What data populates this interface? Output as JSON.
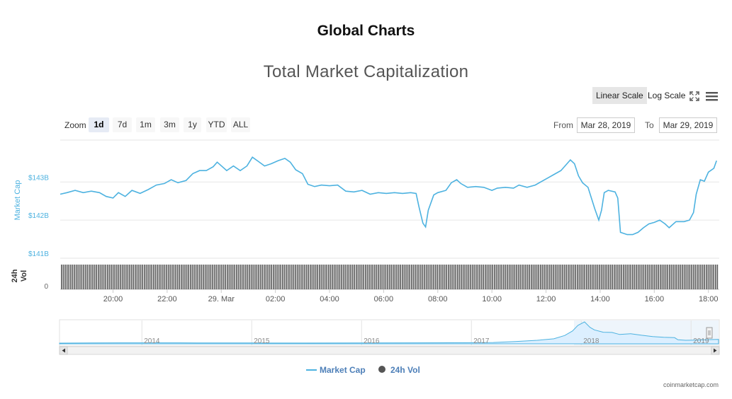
{
  "page": {
    "heading": "Global Charts",
    "credit": "coinmarketcap.com"
  },
  "toolbar": {
    "linear_label": "Linear Scale",
    "log_label": "Log Scale",
    "active_scale": "linear",
    "fullscreen_icon": "fullscreen-icon",
    "menu_icon": "hamburger-menu-icon"
  },
  "zoom": {
    "label": "Zoom",
    "options": [
      "1d",
      "7d",
      "1m",
      "3m",
      "1y",
      "YTD",
      "ALL"
    ],
    "selected": "1d"
  },
  "range": {
    "from_label": "From",
    "from_value": "Mar 28, 2019",
    "to_label": "To",
    "to_value": "Mar 29, 2019"
  },
  "chart_data": {
    "type": "line",
    "title": "Total Market Capitalization",
    "ylabel": "Market Cap",
    "vol_label_line1": "24h",
    "vol_label_line2": "Vol",
    "y_ticks": [
      "$143B",
      "$142B",
      "$141B"
    ],
    "vol_tick": "0",
    "x_ticks": [
      "20:00",
      "22:00",
      "29. Mar",
      "02:00",
      "04:00",
      "06:00",
      "08:00",
      "10:00",
      "12:00",
      "14:00",
      "16:00",
      "18:00"
    ],
    "x_hours": [
      20,
      22,
      24,
      26,
      28,
      30,
      32,
      34,
      36,
      38,
      40,
      42
    ],
    "x_range_hours": [
      18.05,
      42.4
    ],
    "y_range_billions": [
      141.0,
      144.1
    ],
    "series": [
      {
        "name": "Market Cap",
        "color": "#4db2e0",
        "points": [
          [
            18.05,
            142.68
          ],
          [
            18.3,
            142.72
          ],
          [
            18.6,
            142.78
          ],
          [
            18.9,
            142.72
          ],
          [
            19.2,
            142.76
          ],
          [
            19.5,
            142.72
          ],
          [
            19.75,
            142.62
          ],
          [
            20.0,
            142.58
          ],
          [
            20.2,
            142.72
          ],
          [
            20.45,
            142.62
          ],
          [
            20.7,
            142.78
          ],
          [
            21.0,
            142.7
          ],
          [
            21.3,
            142.8
          ],
          [
            21.6,
            142.92
          ],
          [
            21.9,
            142.96
          ],
          [
            22.15,
            143.06
          ],
          [
            22.4,
            142.98
          ],
          [
            22.7,
            143.04
          ],
          [
            22.95,
            143.22
          ],
          [
            23.2,
            143.3
          ],
          [
            23.45,
            143.3
          ],
          [
            23.7,
            143.4
          ],
          [
            23.85,
            143.52
          ],
          [
            24.2,
            143.3
          ],
          [
            24.45,
            143.42
          ],
          [
            24.7,
            143.3
          ],
          [
            24.95,
            143.42
          ],
          [
            25.15,
            143.65
          ],
          [
            25.35,
            143.55
          ],
          [
            25.6,
            143.42
          ],
          [
            25.85,
            143.48
          ],
          [
            26.1,
            143.56
          ],
          [
            26.35,
            143.62
          ],
          [
            26.55,
            143.52
          ],
          [
            26.75,
            143.32
          ],
          [
            27.0,
            143.22
          ],
          [
            27.2,
            142.94
          ],
          [
            27.45,
            142.88
          ],
          [
            27.7,
            142.92
          ],
          [
            28.0,
            142.9
          ],
          [
            28.3,
            142.92
          ],
          [
            28.6,
            142.76
          ],
          [
            28.9,
            142.74
          ],
          [
            29.2,
            142.78
          ],
          [
            29.5,
            142.68
          ],
          [
            29.8,
            142.72
          ],
          [
            30.1,
            142.7
          ],
          [
            30.4,
            142.72
          ],
          [
            30.7,
            142.7
          ],
          [
            31.0,
            142.72
          ],
          [
            31.2,
            142.7
          ],
          [
            31.3,
            142.36
          ],
          [
            31.45,
            141.92
          ],
          [
            31.55,
            141.82
          ],
          [
            31.65,
            142.26
          ],
          [
            31.85,
            142.66
          ],
          [
            32.0,
            142.72
          ],
          [
            32.3,
            142.78
          ],
          [
            32.5,
            142.98
          ],
          [
            32.7,
            143.06
          ],
          [
            32.85,
            142.96
          ],
          [
            33.1,
            142.86
          ],
          [
            33.4,
            142.88
          ],
          [
            33.7,
            142.86
          ],
          [
            34.0,
            142.78
          ],
          [
            34.2,
            142.84
          ],
          [
            34.5,
            142.86
          ],
          [
            34.8,
            142.84
          ],
          [
            35.0,
            142.92
          ],
          [
            35.3,
            142.86
          ],
          [
            35.6,
            142.92
          ],
          [
            35.85,
            143.02
          ],
          [
            36.1,
            143.12
          ],
          [
            36.3,
            143.2
          ],
          [
            36.55,
            143.3
          ],
          [
            36.75,
            143.46
          ],
          [
            36.9,
            143.58
          ],
          [
            37.05,
            143.48
          ],
          [
            37.2,
            143.16
          ],
          [
            37.35,
            142.98
          ],
          [
            37.55,
            142.86
          ],
          [
            37.8,
            142.3
          ],
          [
            37.95,
            142.0
          ],
          [
            38.05,
            142.26
          ],
          [
            38.15,
            142.72
          ],
          [
            38.3,
            142.78
          ],
          [
            38.55,
            142.74
          ],
          [
            38.65,
            142.58
          ],
          [
            38.75,
            141.68
          ],
          [
            39.0,
            141.62
          ],
          [
            39.2,
            141.62
          ],
          [
            39.4,
            141.68
          ],
          [
            39.6,
            141.8
          ],
          [
            39.8,
            141.9
          ],
          [
            40.0,
            141.94
          ],
          [
            40.2,
            142.0
          ],
          [
            40.4,
            141.9
          ],
          [
            40.55,
            141.8
          ],
          [
            40.8,
            141.96
          ],
          [
            41.1,
            141.96
          ],
          [
            41.3,
            142.0
          ],
          [
            41.45,
            142.2
          ],
          [
            41.55,
            142.68
          ],
          [
            41.7,
            143.06
          ],
          [
            41.85,
            143.02
          ],
          [
            42.0,
            143.26
          ],
          [
            42.2,
            143.36
          ],
          [
            42.3,
            143.56
          ]
        ]
      },
      {
        "name": "24h Vol",
        "color": "#555555"
      }
    ],
    "navigator": {
      "x_labels": [
        "2014",
        "2015",
        "2016",
        "2017",
        "2018",
        "2019"
      ],
      "years": [
        2014,
        2015,
        2016,
        2017,
        2018,
        2019
      ],
      "year_range": [
        2013.25,
        2019.25
      ],
      "max_value_billions": 835,
      "points": [
        [
          2013.25,
          1
        ],
        [
          2013.8,
          10
        ],
        [
          2014.0,
          11
        ],
        [
          2014.5,
          8
        ],
        [
          2015.0,
          5
        ],
        [
          2015.5,
          4
        ],
        [
          2016.0,
          7
        ],
        [
          2016.5,
          12
        ],
        [
          2017.0,
          18
        ],
        [
          2017.2,
          25
        ],
        [
          2017.4,
          60
        ],
        [
          2017.6,
          110
        ],
        [
          2017.75,
          170
        ],
        [
          2017.85,
          300
        ],
        [
          2017.92,
          480
        ],
        [
          2017.97,
          700
        ],
        [
          2018.03,
          835
        ],
        [
          2018.08,
          620
        ],
        [
          2018.12,
          520
        ],
        [
          2018.2,
          430
        ],
        [
          2018.28,
          420
        ],
        [
          2018.35,
          340
        ],
        [
          2018.45,
          370
        ],
        [
          2018.55,
          310
        ],
        [
          2018.65,
          260
        ],
        [
          2018.75,
          230
        ],
        [
          2018.85,
          215
        ],
        [
          2018.88,
          130
        ],
        [
          2018.95,
          110
        ],
        [
          2019.05,
          120
        ],
        [
          2019.15,
          135
        ],
        [
          2019.25,
          145
        ]
      ]
    },
    "legend": {
      "placement": "bottom-center"
    },
    "grid": true
  }
}
